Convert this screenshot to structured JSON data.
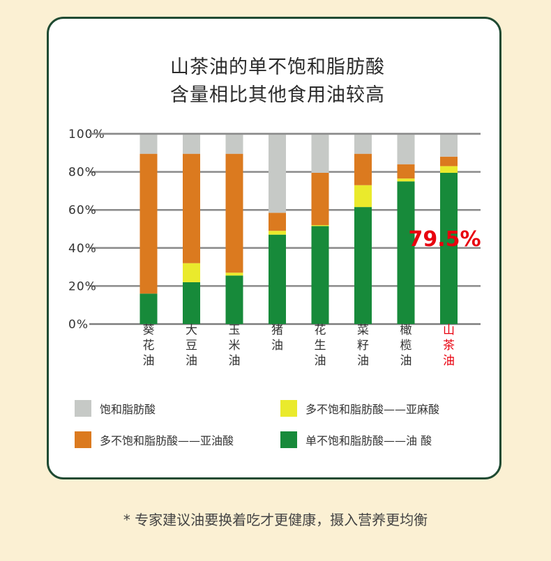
{
  "title_line1": "山茶油的单不饱和脂肪酸",
  "title_line2": "含量相比其他食用油较高",
  "chart_data": {
    "type": "bar",
    "stacked": true,
    "categories": [
      "葵花油",
      "大豆油",
      "玉米油",
      "猪油",
      "花生油",
      "菜籽油",
      "橄榄油",
      "山茶油"
    ],
    "highlight_category": "山茶油",
    "highlight_color": "#e8000e",
    "ylim": [
      0,
      100
    ],
    "yticks": [
      "0%",
      "20%",
      "40%",
      "60%",
      "80%",
      "100%"
    ],
    "grid": true,
    "series": [
      {
        "name": "单不饱和脂肪酸——油 酸",
        "color": "#178a3a",
        "values": [
          16,
          22,
          25.5,
          47,
          51.5,
          61.5,
          75,
          79.5
        ]
      },
      {
        "name": "多不饱和脂肪酸——亚麻酸",
        "color": "#eaea2c",
        "values": [
          0,
          10,
          1.5,
          2,
          0.5,
          11.5,
          1.5,
          3.5
        ]
      },
      {
        "name": "多不饱和脂肪酸——亚油酸",
        "color": "#db7a1f",
        "values": [
          73.5,
          57.5,
          62.5,
          9.5,
          27.5,
          16.5,
          7.5,
          5
        ]
      },
      {
        "name": "饱和脂肪酸",
        "color": "#c6c9c6",
        "values": [
          10.5,
          10.5,
          10.5,
          41.5,
          20.5,
          10.5,
          16,
          12
        ]
      }
    ],
    "annotation": "79.5%"
  },
  "legend": [
    {
      "label": "饱和脂肪酸",
      "color": "#c6c9c6"
    },
    {
      "label": "多不饱和脂肪酸——亚麻酸",
      "color": "#eaea2c"
    },
    {
      "label": "多不饱和脂肪酸——亚油酸",
      "color": "#db7a1f"
    },
    {
      "label": "单不饱和脂肪酸——油 酸",
      "color": "#178a3a"
    }
  ],
  "footnote": "* 专家建议油要换着吃才更健康，摄入营养更均衡"
}
